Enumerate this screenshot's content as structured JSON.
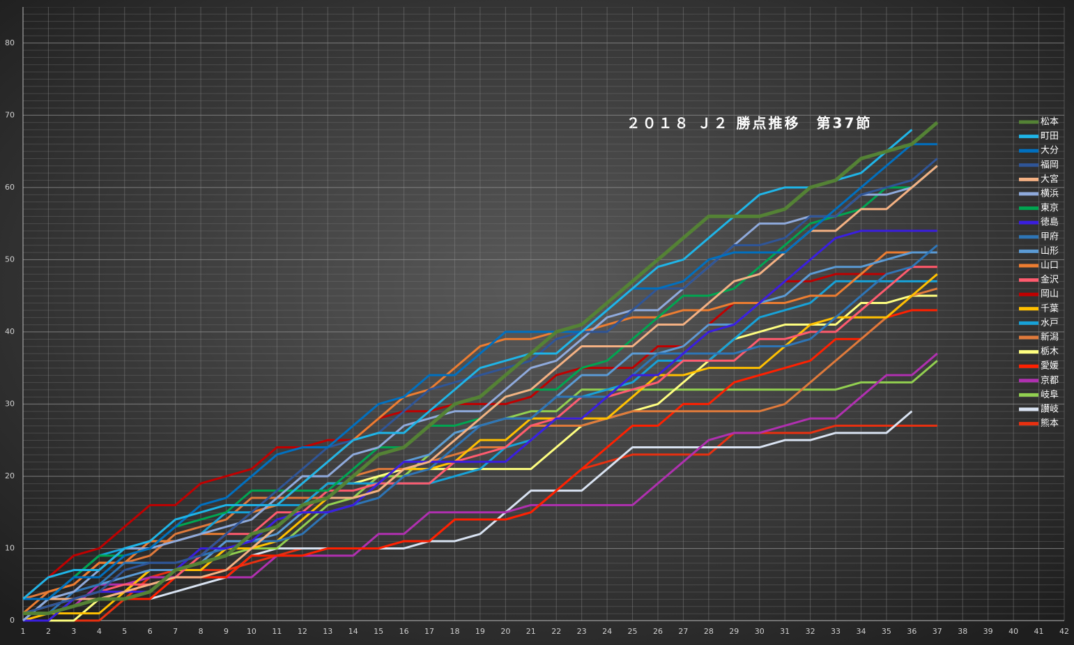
{
  "chart_data": {
    "type": "line",
    "title": "２０１８ Ｊ２ 勝点推移　第37節",
    "x": [
      1,
      2,
      3,
      4,
      5,
      6,
      7,
      8,
      9,
      10,
      11,
      12,
      13,
      14,
      15,
      16,
      17,
      18,
      19,
      20,
      21,
      22,
      23,
      24,
      25,
      26,
      27,
      28,
      29,
      30,
      31,
      32,
      33,
      34,
      35,
      36,
      37
    ],
    "xlim": [
      1,
      42
    ],
    "xticks": [
      1,
      2,
      3,
      4,
      5,
      6,
      7,
      8,
      9,
      10,
      11,
      12,
      13,
      14,
      15,
      16,
      17,
      18,
      19,
      20,
      21,
      22,
      23,
      24,
      25,
      26,
      27,
      28,
      29,
      30,
      31,
      32,
      33,
      34,
      35,
      36,
      37,
      38,
      39,
      40,
      41,
      42
    ],
    "ylim": [
      0,
      85
    ],
    "yticks": [
      0,
      10,
      20,
      30,
      40,
      50,
      60,
      70,
      80
    ],
    "grid": true,
    "legend": "right",
    "series": [
      {
        "name": "松本",
        "color": "#548235",
        "values": [
          1,
          1,
          2,
          3,
          3,
          4,
          7,
          8,
          9,
          12,
          13,
          16,
          17,
          20,
          23,
          24,
          27,
          30,
          31,
          34,
          37,
          40,
          41,
          44,
          47,
          50,
          53,
          56,
          56,
          56,
          57,
          60,
          61,
          64,
          65,
          66,
          69
        ]
      },
      {
        "name": "町田",
        "color": "#1fb5e8",
        "values": [
          3,
          6,
          7,
          7,
          10,
          11,
          14,
          15,
          16,
          16,
          16,
          19,
          22,
          25,
          26,
          26,
          29,
          32,
          35,
          36,
          37,
          37,
          40,
          43,
          46,
          49,
          50,
          53,
          56,
          59,
          60,
          60,
          61,
          62,
          65,
          68,
          null
        ]
      },
      {
        "name": "大分",
        "color": "#0070c0",
        "values": [
          3,
          3,
          6,
          6,
          9,
          10,
          13,
          16,
          17,
          20,
          23,
          24,
          24,
          27,
          30,
          31,
          34,
          34,
          37,
          40,
          40,
          40,
          40,
          43,
          46,
          46,
          47,
          50,
          51,
          51,
          51,
          54,
          57,
          60,
          63,
          66,
          66
        ]
      },
      {
        "name": "福岡",
        "color": "#2f5597",
        "values": [
          1,
          2,
          3,
          4,
          7,
          8,
          8,
          9,
          12,
          15,
          18,
          21,
          24,
          25,
          26,
          29,
          32,
          33,
          34,
          35,
          36,
          39,
          40,
          40,
          43,
          46,
          46,
          49,
          52,
          52,
          53,
          56,
          56,
          59,
          60,
          61,
          64
        ]
      },
      {
        "name": "大宮",
        "color": "#f4b183",
        "values": [
          3,
          3,
          3,
          3,
          4,
          5,
          6,
          6,
          7,
          10,
          13,
          16,
          17,
          17,
          18,
          21,
          22,
          25,
          28,
          31,
          32,
          35,
          38,
          38,
          38,
          41,
          41,
          44,
          47,
          48,
          51,
          54,
          54,
          57,
          57,
          60,
          63
        ]
      },
      {
        "name": "横浜",
        "color": "#8faadc",
        "values": [
          0,
          3,
          4,
          7,
          10,
          10,
          11,
          12,
          13,
          14,
          17,
          20,
          20,
          23,
          24,
          27,
          28,
          29,
          29,
          32,
          35,
          36,
          39,
          42,
          43,
          43,
          46,
          49,
          52,
          55,
          55,
          56,
          56,
          59,
          59,
          60,
          63
        ]
      },
      {
        "name": "東京",
        "color": "#00a651",
        "values": [
          3,
          3,
          6,
          9,
          9,
          10,
          13,
          14,
          15,
          18,
          18,
          18,
          18,
          21,
          24,
          24,
          27,
          27,
          28,
          31,
          32,
          32,
          35,
          36,
          39,
          42,
          45,
          45,
          46,
          49,
          52,
          55,
          56,
          57,
          60,
          60,
          63
        ]
      },
      {
        "name": "徳島",
        "color": "#3a1ee0",
        "values": [
          0,
          0,
          3,
          4,
          4,
          4,
          7,
          10,
          10,
          11,
          14,
          15,
          15,
          16,
          19,
          22,
          22,
          22,
          22,
          22,
          25,
          28,
          28,
          31,
          34,
          34,
          37,
          40,
          41,
          44,
          47,
          50,
          53,
          54,
          54,
          54,
          54
        ]
      },
      {
        "name": "甲府",
        "color": "#2e75b6",
        "values": [
          1,
          1,
          4,
          5,
          8,
          8,
          8,
          9,
          10,
          11,
          11,
          12,
          15,
          16,
          17,
          20,
          21,
          24,
          27,
          28,
          28,
          31,
          31,
          31,
          34,
          37,
          37,
          37,
          37,
          38,
          38,
          39,
          42,
          45,
          48,
          49,
          52
        ]
      },
      {
        "name": "山形",
        "color": "#5b9bd5",
        "values": [
          0,
          3,
          4,
          5,
          6,
          7,
          7,
          8,
          11,
          11,
          12,
          15,
          15,
          16,
          19,
          22,
          23,
          26,
          27,
          28,
          28,
          31,
          34,
          34,
          37,
          37,
          38,
          41,
          41,
          44,
          45,
          48,
          49,
          49,
          50,
          51,
          51
        ]
      },
      {
        "name": "山口",
        "color": "#ed7d31",
        "values": [
          1,
          4,
          5,
          8,
          8,
          11,
          11,
          12,
          12,
          15,
          16,
          19,
          22,
          25,
          28,
          31,
          32,
          35,
          38,
          39,
          39,
          40,
          40,
          41,
          42,
          42,
          43,
          43,
          44,
          44,
          44,
          45,
          45,
          48,
          51,
          51,
          51
        ]
      },
      {
        "name": "金沢",
        "color": "#ff5b6e",
        "values": [
          3,
          3,
          3,
          4,
          5,
          5,
          6,
          9,
          12,
          12,
          15,
          15,
          18,
          18,
          19,
          19,
          19,
          22,
          23,
          24,
          27,
          28,
          31,
          31,
          32,
          33,
          36,
          36,
          36,
          39,
          39,
          40,
          40,
          43,
          46,
          49,
          49
        ]
      },
      {
        "name": "岡山",
        "color": "#c00000",
        "values": [
          3,
          6,
          9,
          10,
          13,
          16,
          16,
          19,
          20,
          21,
          24,
          24,
          25,
          25,
          28,
          29,
          29,
          30,
          30,
          30,
          31,
          34,
          35,
          35,
          35,
          38,
          38,
          41,
          44,
          44,
          47,
          47,
          48,
          48,
          48,
          49,
          49
        ]
      },
      {
        "name": "千葉",
        "color": "#ffc000",
        "values": [
          0,
          1,
          1,
          1,
          4,
          7,
          7,
          7,
          10,
          10,
          11,
          14,
          17,
          17,
          18,
          21,
          21,
          22,
          25,
          25,
          28,
          28,
          28,
          28,
          31,
          34,
          34,
          35,
          35,
          35,
          38,
          41,
          42,
          42,
          42,
          45,
          48
        ]
      },
      {
        "name": "水戸",
        "color": "#17a2d8",
        "values": [
          0,
          3,
          6,
          9,
          10,
          11,
          11,
          12,
          15,
          15,
          16,
          16,
          19,
          19,
          19,
          19,
          19,
          20,
          21,
          24,
          25,
          28,
          31,
          32,
          33,
          36,
          36,
          36,
          39,
          42,
          43,
          44,
          47,
          47,
          47,
          47,
          47
        ]
      },
      {
        "name": "新潟",
        "color": "#e07a3b",
        "values": [
          3,
          4,
          5,
          8,
          8,
          9,
          12,
          13,
          14,
          17,
          17,
          17,
          17,
          20,
          21,
          21,
          22,
          23,
          24,
          24,
          27,
          27,
          27,
          28,
          29,
          29,
          29,
          29,
          29,
          29,
          30,
          33,
          36,
          39,
          42,
          45,
          46
        ]
      },
      {
        "name": "栃木",
        "color": "#ffff80",
        "values": [
          0,
          0,
          0,
          3,
          4,
          7,
          7,
          7,
          10,
          10,
          13,
          16,
          19,
          19,
          20,
          21,
          21,
          21,
          21,
          21,
          21,
          24,
          27,
          28,
          29,
          30,
          33,
          36,
          39,
          40,
          41,
          41,
          41,
          44,
          44,
          45,
          45
        ]
      },
      {
        "name": "愛媛",
        "color": "#ff2000",
        "values": [
          3,
          3,
          3,
          3,
          3,
          3,
          6,
          6,
          6,
          9,
          9,
          9,
          10,
          10,
          10,
          11,
          11,
          14,
          14,
          14,
          15,
          18,
          21,
          24,
          27,
          27,
          30,
          30,
          33,
          34,
          35,
          36,
          39,
          39,
          42,
          43,
          43
        ]
      },
      {
        "name": "京都",
        "color": "#b030b0",
        "values": [
          0,
          1,
          2,
          5,
          5,
          6,
          6,
          6,
          6,
          6,
          9,
          9,
          9,
          9,
          12,
          12,
          15,
          15,
          15,
          15,
          16,
          16,
          16,
          16,
          16,
          19,
          22,
          25,
          26,
          26,
          27,
          28,
          28,
          31,
          34,
          34,
          37
        ]
      },
      {
        "name": "岐阜",
        "color": "#92d050",
        "values": [
          0,
          0,
          3,
          4,
          4,
          7,
          7,
          8,
          9,
          10,
          10,
          13,
          16,
          17,
          20,
          20,
          23,
          26,
          27,
          28,
          29,
          29,
          32,
          32,
          32,
          32,
          32,
          32,
          32,
          32,
          32,
          32,
          32,
          33,
          33,
          33,
          36
        ]
      },
      {
        "name": "讃岐",
        "color": "#d9e3f2",
        "values": [
          1,
          2,
          3,
          3,
          3,
          3,
          4,
          5,
          6,
          9,
          10,
          10,
          10,
          10,
          10,
          10,
          11,
          11,
          12,
          15,
          18,
          18,
          18,
          21,
          24,
          24,
          24,
          24,
          24,
          24,
          25,
          25,
          26,
          26,
          26,
          29,
          null
        ]
      },
      {
        "name": "熊本",
        "color": "#e83010",
        "values": [
          0,
          0,
          0,
          0,
          3,
          6,
          7,
          7,
          7,
          8,
          9,
          10,
          10,
          10,
          10,
          11,
          11,
          14,
          14,
          14,
          15,
          18,
          21,
          22,
          23,
          23,
          23,
          23,
          26,
          26,
          26,
          26,
          27,
          27,
          27,
          27,
          27
        ]
      }
    ]
  }
}
